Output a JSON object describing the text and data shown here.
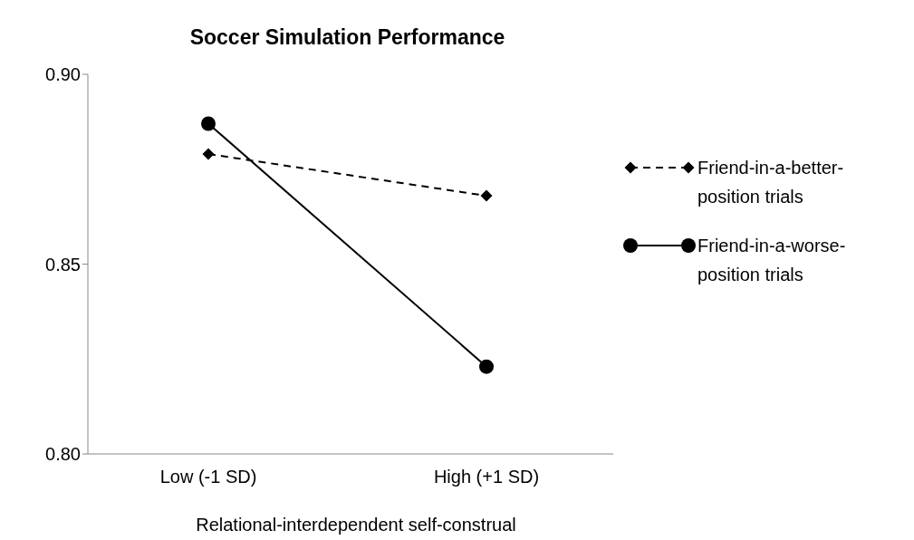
{
  "chart_data": {
    "type": "line",
    "title": "Soccer Simulation Performance",
    "xlabel": "Relational-interdependent self-construal",
    "categories": [
      "Low (-1 SD)",
      "High (+1 SD)"
    ],
    "series": [
      {
        "name": "Friend-in-a-better-position trials",
        "color": "#000000",
        "values": [
          0.879,
          0.868
        ],
        "marker": "diamond",
        "line_style": "dashed"
      },
      {
        "name": "Friend-in-a-worse-position trials",
        "color": "#000000",
        "values": [
          0.887,
          0.823
        ],
        "marker": "circle",
        "line_style": "solid"
      }
    ],
    "ylim": [
      0.8,
      0.9
    ],
    "yticks": [
      {
        "value": 0.8,
        "label": "0.80"
      },
      {
        "value": 0.85,
        "label": "0.85"
      },
      {
        "value": 0.9,
        "label": "0.90"
      }
    ],
    "grid": false,
    "legend": "right"
  }
}
